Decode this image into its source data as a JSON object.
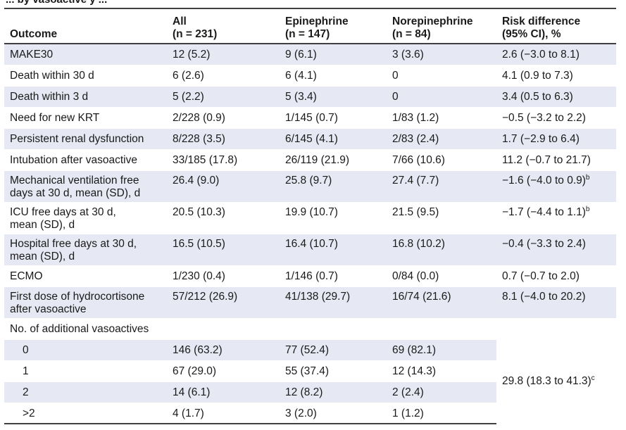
{
  "title_fragment": "... by vasoactive y ...",
  "headers": [
    [
      "Outcome"
    ],
    [
      "All",
      "(n = 231)"
    ],
    [
      "Epinephrine",
      "(n = 147)"
    ],
    [
      "Norepinephrine",
      "(n = 84)"
    ],
    [
      "Risk difference",
      "(95% CI), %"
    ]
  ],
  "rows": [
    {
      "outcome": "MAKE30",
      "all": "12 (5.2)",
      "epi": "9 (6.1)",
      "norepi": "3 (3.6)",
      "rd": "2.6 (−3.0 to 8.1)",
      "rd_sup": ""
    },
    {
      "outcome": "Death within 30 d",
      "all": "6 (2.6)",
      "epi": "6 (4.1)",
      "norepi": "0",
      "rd": "4.1 (0.9 to 7.3)",
      "rd_sup": ""
    },
    {
      "outcome": "Death within 3 d",
      "all": "5 (2.2)",
      "epi": "5 (3.4)",
      "norepi": "0",
      "rd": "3.4 (0.5 to 6.3)",
      "rd_sup": ""
    },
    {
      "outcome": "Need for new KRT",
      "all": "2/228 (0.9)",
      "epi": "1/145 (0.7)",
      "norepi": "1/83 (1.2)",
      "rd": "−0.5 (−3.2 to 2.2)",
      "rd_sup": ""
    },
    {
      "outcome": "Persistent renal dysfunction",
      "all": "8/228 (3.5)",
      "epi": "6/145 (4.1)",
      "norepi": "2/83 (2.4)",
      "rd": "1.7 (−2.9 to 6.4)",
      "rd_sup": ""
    },
    {
      "outcome": "Intubation after vasoactive",
      "all": "33/185 (17.8)",
      "epi": "26/119 (21.9)",
      "norepi": "7/66 (10.6)",
      "rd": "11.2 (−0.7 to 21.7)",
      "rd_sup": ""
    },
    {
      "outcome_lines": [
        "Mechanical ventilation free",
        "days at 30 d, mean (SD), d"
      ],
      "all": "26.4 (9.0)",
      "epi": "25.8 (9.7)",
      "norepi": "27.4 (7.7)",
      "rd": "−1.6 (−4.0 to 0.9)",
      "rd_sup": "b"
    },
    {
      "outcome_lines": [
        "ICU free days at 30 d,",
        "mean (SD), d"
      ],
      "all": "20.5 (10.3)",
      "epi": "19.9 (10.7)",
      "norepi": "21.5 (9.5)",
      "rd": "−1.7 (−4.4 to 1.1)",
      "rd_sup": "b"
    },
    {
      "outcome_lines": [
        "Hospital free days at 30 d,",
        "mean (SD), d"
      ],
      "all": "16.5 (10.5)",
      "epi": "16.4 (10.7)",
      "norepi": "16.8 (10.2)",
      "rd": "−0.4 (−3.3 to 2.4)",
      "rd_sup": ""
    },
    {
      "outcome": "ECMO",
      "all": "1/230 (0.4)",
      "epi": "1/146 (0.7)",
      "norepi": "0/84 (0.0)",
      "rd": "0.7 (−0.7 to 2.0)",
      "rd_sup": ""
    },
    {
      "outcome_lines": [
        "First dose of hydrocortisone",
        "after vasoactive"
      ],
      "all": "57/212 (26.9)",
      "epi": "41/138 (29.7)",
      "norepi": "16/74 (21.6)",
      "rd": "8.1 (−4.0 to 20.2)",
      "rd_sup": ""
    }
  ],
  "vasoactives": {
    "label": "No. of additional vasoactives",
    "rows": [
      {
        "level": "0",
        "all": "146 (63.2)",
        "epi": "77 (52.4)",
        "norepi": "69 (82.1)"
      },
      {
        "level": "1",
        "all": "67 (29.0)",
        "epi": "55 (37.4)",
        "norepi": "12 (14.3)"
      },
      {
        "level": "2",
        "all": "14 (6.1)",
        "epi": "12 (8.2)",
        "norepi": "2 (2.4)"
      },
      {
        "level": ">2",
        "all": "4 (1.7)",
        "epi": "3 (2.0)",
        "norepi": "1 (1.2)"
      }
    ],
    "rd": "29.8 (18.3 to 41.3)",
    "rd_sup": "c"
  }
}
